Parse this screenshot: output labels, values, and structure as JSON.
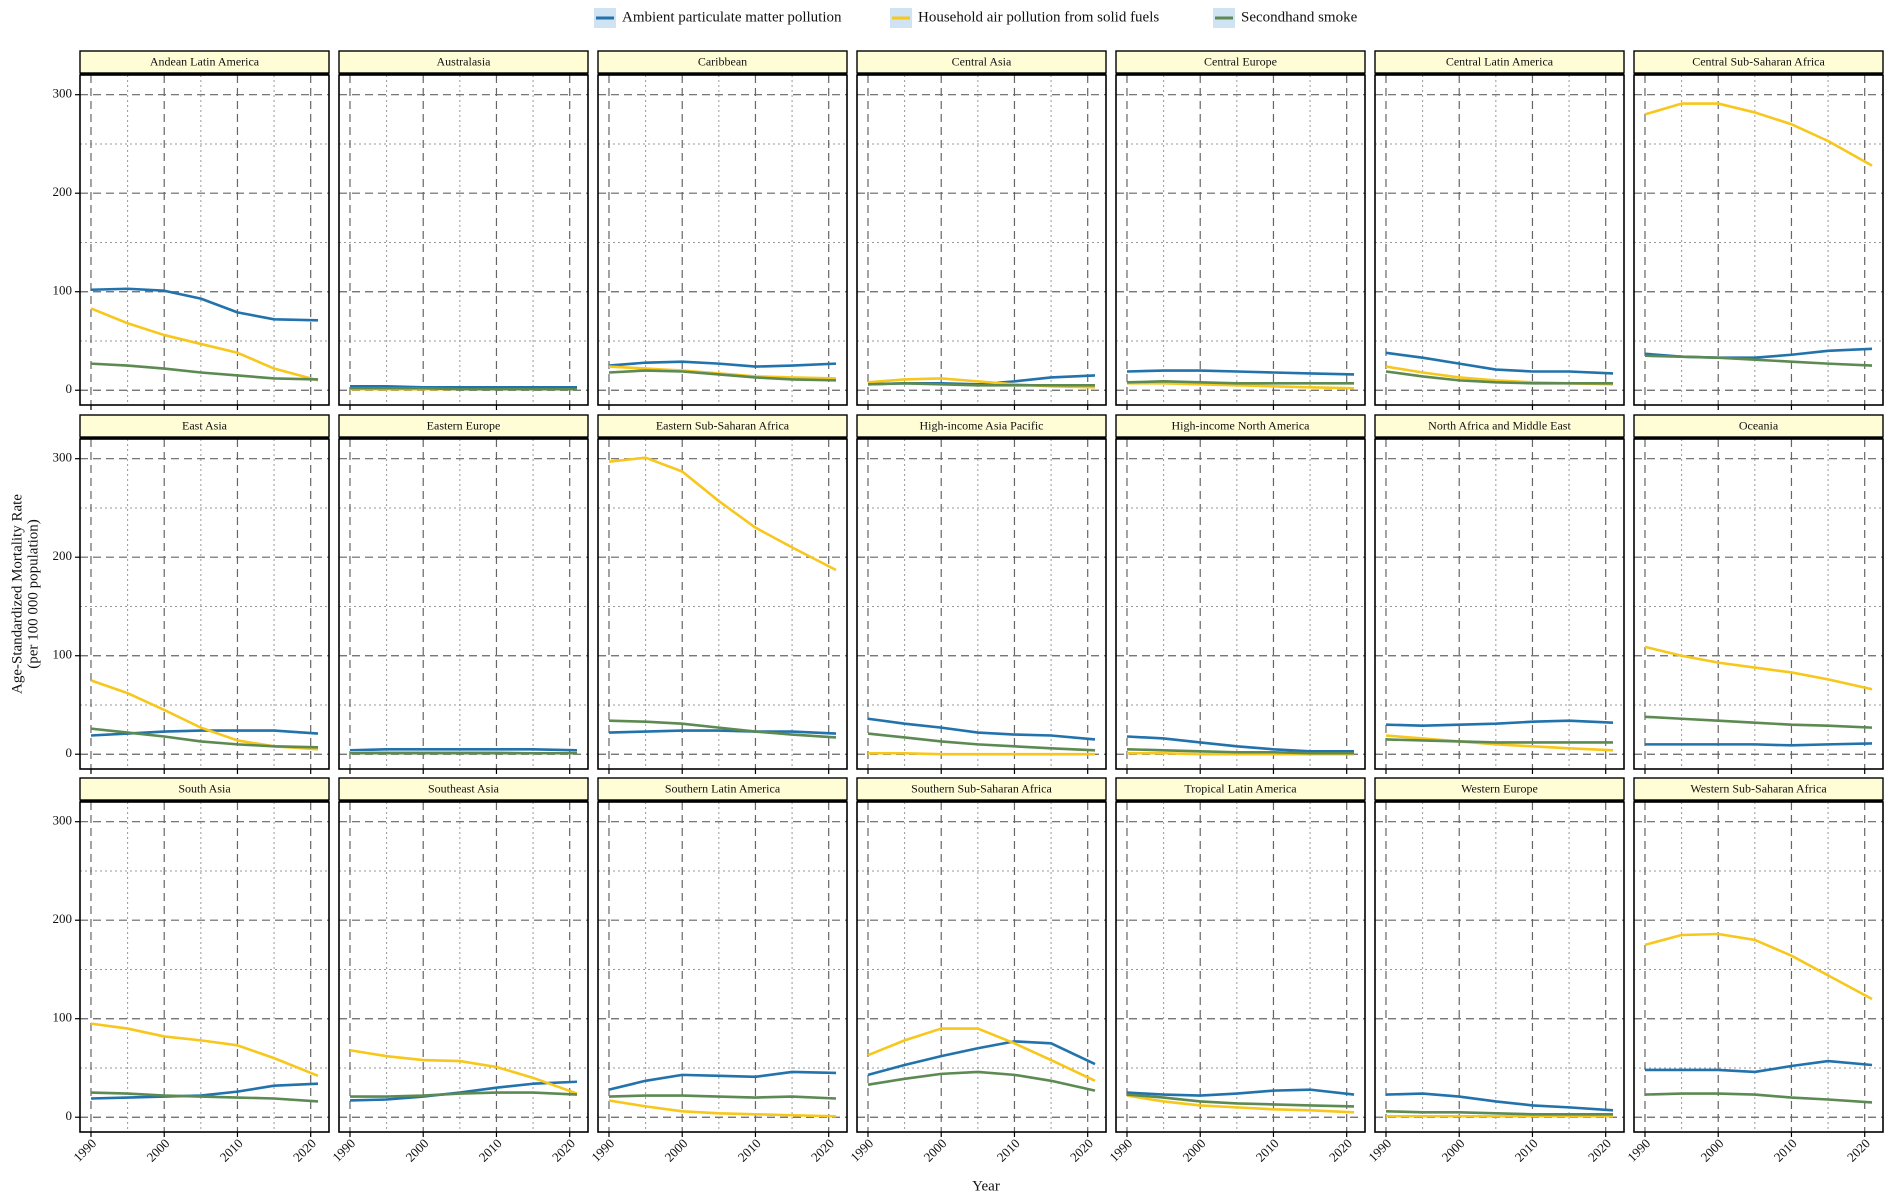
{
  "chart_data": {
    "type": "line",
    "xlabel": "Year",
    "ylabel": [
      "Age-Standardized Mortality Rate",
      "(per 100 000 population)"
    ],
    "x": [
      1990,
      1995,
      2000,
      2005,
      2010,
      2015,
      2021
    ],
    "xlim": [
      1988.5,
      2022.5
    ],
    "xticks": [
      1990,
      2000,
      2010,
      2020
    ],
    "x_minor_ticks": [
      1995,
      2005,
      2015
    ],
    "ylim": [
      -15,
      320
    ],
    "yticks": [
      0,
      100,
      200,
      300
    ],
    "y_minor_ticks": [
      50,
      150,
      250
    ],
    "grid": true,
    "legend": "top",
    "series": [
      {
        "name": "Ambient particulate matter pollution",
        "color": "#2272ac"
      },
      {
        "name": "Household air pollution from solid fuels",
        "color": "#f7c71c"
      },
      {
        "name": "Secondhand smoke",
        "color": "#5c8a52"
      }
    ],
    "panels": [
      {
        "title": "Andean Latin America",
        "values": [
          [
            102,
            103,
            101,
            93,
            79,
            72,
            71
          ],
          [
            83,
            68,
            56,
            47,
            38,
            22,
            10
          ],
          [
            27,
            25,
            22,
            18,
            15,
            12,
            11
          ]
        ]
      },
      {
        "title": "Australasia",
        "values": [
          [
            4,
            4,
            3,
            3,
            3,
            3,
            3
          ],
          [
            1,
            1,
            1,
            1,
            1,
            1,
            1
          ],
          [
            2,
            2,
            2,
            1,
            1,
            1,
            1
          ]
        ]
      },
      {
        "title": "Caribbean",
        "values": [
          [
            25,
            28,
            29,
            27,
            24,
            25,
            27
          ],
          [
            24,
            22,
            20,
            17,
            14,
            13,
            12
          ],
          [
            18,
            20,
            19,
            16,
            13,
            11,
            10
          ]
        ]
      },
      {
        "title": "Central Asia",
        "values": [
          [
            6,
            7,
            7,
            6,
            9,
            13,
            15
          ],
          [
            8,
            11,
            12,
            9,
            6,
            4,
            3
          ],
          [
            6,
            7,
            6,
            5,
            5,
            5,
            5
          ]
        ]
      },
      {
        "title": "Central Europe",
        "values": [
          [
            19,
            20,
            20,
            19,
            18,
            17,
            16
          ],
          [
            7,
            7,
            6,
            5,
            4,
            3,
            2
          ],
          [
            8,
            9,
            8,
            7,
            7,
            7,
            7
          ]
        ]
      },
      {
        "title": "Central Latin America",
        "values": [
          [
            38,
            33,
            27,
            21,
            19,
            19,
            17
          ],
          [
            24,
            18,
            13,
            10,
            8,
            7,
            6
          ],
          [
            19,
            14,
            10,
            8,
            7,
            7,
            7
          ]
        ]
      },
      {
        "title": "Central Sub-Saharan Africa",
        "values": [
          [
            37,
            34,
            33,
            33,
            36,
            40,
            42
          ],
          [
            280,
            291,
            291,
            282,
            270,
            253,
            228
          ],
          [
            35,
            34,
            33,
            31,
            29,
            27,
            25
          ]
        ]
      },
      {
        "title": "East Asia",
        "values": [
          [
            19,
            21,
            23,
            24,
            24,
            24,
            21
          ],
          [
            75,
            62,
            45,
            27,
            14,
            8,
            5
          ],
          [
            26,
            22,
            18,
            13,
            10,
            8,
            7
          ]
        ]
      },
      {
        "title": "Eastern Europe",
        "values": [
          [
            4,
            5,
            5,
            5,
            5,
            5,
            4
          ],
          [
            2,
            2,
            2,
            2,
            2,
            1,
            1
          ],
          [
            1,
            1,
            1,
            1,
            1,
            1,
            1
          ]
        ]
      },
      {
        "title": "Eastern Sub-Saharan Africa",
        "values": [
          [
            22,
            23,
            24,
            24,
            23,
            23,
            21
          ],
          [
            297,
            301,
            287,
            257,
            230,
            210,
            187
          ],
          [
            34,
            33,
            31,
            27,
            23,
            20,
            17
          ]
        ]
      },
      {
        "title": "High-income Asia Pacific",
        "values": [
          [
            36,
            31,
            27,
            22,
            20,
            19,
            15
          ],
          [
            1,
            1,
            0,
            0,
            0,
            0,
            0
          ],
          [
            21,
            17,
            13,
            10,
            8,
            6,
            4
          ]
        ]
      },
      {
        "title": "High-income North America",
        "values": [
          [
            18,
            16,
            12,
            8,
            5,
            3,
            3
          ],
          [
            1,
            1,
            0,
            0,
            0,
            0,
            0
          ],
          [
            5,
            4,
            3,
            2,
            2,
            1,
            1
          ]
        ]
      },
      {
        "title": "North Africa and Middle East",
        "values": [
          [
            30,
            29,
            30,
            31,
            33,
            34,
            32
          ],
          [
            19,
            16,
            13,
            10,
            8,
            6,
            4
          ],
          [
            15,
            14,
            13,
            12,
            12,
            12,
            12
          ]
        ]
      },
      {
        "title": "Oceania",
        "values": [
          [
            10,
            10,
            10,
            10,
            9,
            10,
            11
          ],
          [
            109,
            100,
            93,
            88,
            83,
            76,
            66
          ],
          [
            38,
            36,
            34,
            32,
            30,
            29,
            27
          ]
        ]
      },
      {
        "title": "South Asia",
        "values": [
          [
            19,
            20,
            21,
            22,
            26,
            32,
            34
          ],
          [
            95,
            90,
            82,
            78,
            73,
            60,
            42
          ],
          [
            25,
            24,
            22,
            21,
            20,
            19,
            16
          ]
        ]
      },
      {
        "title": "Southeast Asia",
        "values": [
          [
            17,
            18,
            21,
            25,
            30,
            34,
            36
          ],
          [
            68,
            62,
            58,
            57,
            51,
            40,
            24
          ],
          [
            21,
            21,
            22,
            24,
            25,
            25,
            23
          ]
        ]
      },
      {
        "title": "Southern Latin America",
        "values": [
          [
            28,
            37,
            43,
            42,
            41,
            46,
            45
          ],
          [
            17,
            11,
            6,
            4,
            3,
            2,
            1
          ],
          [
            21,
            22,
            22,
            21,
            20,
            21,
            19
          ]
        ]
      },
      {
        "title": "Southern Sub-Saharan Africa",
        "values": [
          [
            43,
            53,
            62,
            70,
            77,
            75,
            54
          ],
          [
            63,
            78,
            90,
            90,
            75,
            58,
            37
          ],
          [
            33,
            39,
            44,
            46,
            43,
            37,
            27
          ]
        ]
      },
      {
        "title": "Tropical Latin America",
        "values": [
          [
            25,
            23,
            22,
            24,
            27,
            28,
            23
          ],
          [
            22,
            16,
            12,
            10,
            8,
            7,
            5
          ],
          [
            23,
            20,
            16,
            14,
            13,
            12,
            11
          ]
        ]
      },
      {
        "title": "Western Europe",
        "values": [
          [
            23,
            24,
            21,
            16,
            12,
            10,
            7
          ],
          [
            1,
            1,
            1,
            1,
            1,
            1,
            1
          ],
          [
            6,
            5,
            5,
            4,
            3,
            3,
            3
          ]
        ]
      },
      {
        "title": "Western Sub-Saharan Africa",
        "values": [
          [
            48,
            48,
            48,
            46,
            52,
            57,
            53
          ],
          [
            175,
            185,
            186,
            180,
            164,
            144,
            120
          ],
          [
            23,
            24,
            24,
            23,
            20,
            18,
            15
          ]
        ]
      }
    ]
  }
}
